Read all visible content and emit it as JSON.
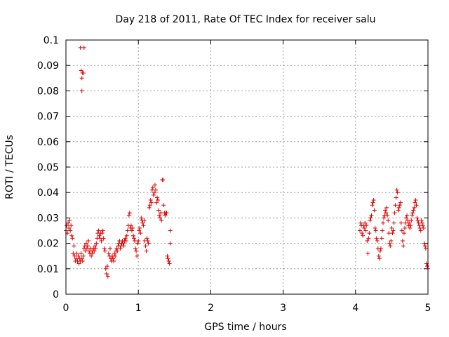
{
  "chart_data": {
    "type": "scatter",
    "title": "Day 218 of 2011, Rate Of TEC Index for receiver salu",
    "xlabel": "GPS time / hours",
    "ylabel": "ROTI / TECUs",
    "xlim": [
      0,
      5
    ],
    "ylim": [
      0,
      0.1
    ],
    "x_ticks": [
      "0",
      "1",
      "2",
      "3",
      "4",
      "5"
    ],
    "y_ticks": [
      "0",
      "0.01",
      "0.02",
      "0.03",
      "0.04",
      "0.05",
      "0.06",
      "0.07",
      "0.08",
      "0.09",
      "0.1"
    ],
    "grid": true,
    "marker": "plus",
    "color": "#e00000",
    "series": [
      {
        "name": "ROTI",
        "points": [
          [
            0.0,
            0.025
          ],
          [
            0.01,
            0.027
          ],
          [
            0.02,
            0.024
          ],
          [
            0.03,
            0.028
          ],
          [
            0.04,
            0.026
          ],
          [
            0.05,
            0.029
          ],
          [
            0.06,
            0.025
          ],
          [
            0.07,
            0.027
          ],
          [
            0.08,
            0.023
          ],
          [
            0.09,
            0.022
          ],
          [
            0.1,
            0.016
          ],
          [
            0.11,
            0.019
          ],
          [
            0.12,
            0.015
          ],
          [
            0.13,
            0.013
          ],
          [
            0.14,
            0.014
          ],
          [
            0.15,
            0.016
          ],
          [
            0.16,
            0.013
          ],
          [
            0.17,
            0.015
          ],
          [
            0.18,
            0.012
          ],
          [
            0.19,
            0.014
          ],
          [
            0.2,
            0.013
          ],
          [
            0.21,
            0.016
          ],
          [
            0.22,
            0.014
          ],
          [
            0.23,
            0.013
          ],
          [
            0.24,
            0.015
          ],
          [
            0.25,
            0.018
          ],
          [
            0.26,
            0.019
          ],
          [
            0.27,
            0.017
          ],
          [
            0.28,
            0.02
          ],
          [
            0.29,
            0.018
          ],
          [
            0.3,
            0.019
          ],
          [
            0.31,
            0.021
          ],
          [
            0.32,
            0.017
          ],
          [
            0.33,
            0.016
          ],
          [
            0.34,
            0.018
          ],
          [
            0.35,
            0.015
          ],
          [
            0.36,
            0.017
          ],
          [
            0.37,
            0.016
          ],
          [
            0.38,
            0.018
          ],
          [
            0.39,
            0.017
          ],
          [
            0.4,
            0.019
          ],
          [
            0.41,
            0.018
          ],
          [
            0.42,
            0.02
          ],
          [
            0.43,
            0.022
          ],
          [
            0.44,
            0.024
          ],
          [
            0.45,
            0.025
          ],
          [
            0.46,
            0.023
          ],
          [
            0.47,
            0.022
          ],
          [
            0.48,
            0.024
          ],
          [
            0.49,
            0.021
          ],
          [
            0.5,
            0.024
          ],
          [
            0.51,
            0.025
          ],
          [
            0.52,
            0.022
          ],
          [
            0.53,
            0.018
          ],
          [
            0.54,
            0.017
          ],
          [
            0.55,
            0.01
          ],
          [
            0.56,
            0.008
          ],
          [
            0.57,
            0.011
          ],
          [
            0.58,
            0.007
          ],
          [
            0.59,
            0.016
          ],
          [
            0.6,
            0.015
          ],
          [
            0.61,
            0.018
          ],
          [
            0.62,
            0.014
          ],
          [
            0.63,
            0.013
          ],
          [
            0.64,
            0.015
          ],
          [
            0.65,
            0.014
          ],
          [
            0.66,
            0.013
          ],
          [
            0.67,
            0.016
          ],
          [
            0.68,
            0.015
          ],
          [
            0.69,
            0.017
          ],
          [
            0.7,
            0.018
          ],
          [
            0.71,
            0.017
          ],
          [
            0.72,
            0.019
          ],
          [
            0.73,
            0.02
          ],
          [
            0.74,
            0.021
          ],
          [
            0.75,
            0.018
          ],
          [
            0.76,
            0.019
          ],
          [
            0.77,
            0.02
          ],
          [
            0.78,
            0.021
          ],
          [
            0.79,
            0.02
          ],
          [
            0.8,
            0.019
          ],
          [
            0.81,
            0.021
          ],
          [
            0.82,
            0.022
          ],
          [
            0.83,
            0.021
          ],
          [
            0.84,
            0.023
          ],
          [
            0.85,
            0.025
          ],
          [
            0.86,
            0.027
          ],
          [
            0.87,
            0.031
          ],
          [
            0.88,
            0.032
          ],
          [
            0.89,
            0.026
          ],
          [
            0.9,
            0.027
          ],
          [
            0.91,
            0.025
          ],
          [
            0.92,
            0.026
          ],
          [
            0.93,
            0.023
          ],
          [
            0.94,
            0.022
          ],
          [
            0.95,
            0.021
          ],
          [
            0.96,
            0.018
          ],
          [
            0.97,
            0.017
          ],
          [
            0.98,
            0.015
          ],
          [
            0.99,
            0.02
          ],
          [
            1.0,
            0.021
          ],
          [
            1.01,
            0.025
          ],
          [
            1.02,
            0.026
          ],
          [
            1.03,
            0.024
          ],
          [
            1.04,
            0.03
          ],
          [
            1.05,
            0.029
          ],
          [
            1.06,
            0.028
          ],
          [
            1.07,
            0.027
          ],
          [
            1.08,
            0.029
          ],
          [
            1.09,
            0.021
          ],
          [
            1.1,
            0.019
          ],
          [
            1.11,
            0.017
          ],
          [
            1.12,
            0.022
          ],
          [
            1.13,
            0.021
          ],
          [
            1.14,
            0.02
          ],
          [
            1.15,
            0.034
          ],
          [
            1.16,
            0.035
          ],
          [
            1.17,
            0.037
          ],
          [
            1.18,
            0.036
          ],
          [
            1.19,
            0.041
          ],
          [
            1.2,
            0.042
          ],
          [
            1.21,
            0.039
          ],
          [
            1.22,
            0.04
          ],
          [
            1.23,
            0.043
          ],
          [
            1.24,
            0.041
          ],
          [
            1.25,
            0.036
          ],
          [
            1.26,
            0.038
          ],
          [
            1.27,
            0.037
          ],
          [
            1.28,
            0.033
          ],
          [
            1.29,
            0.031
          ],
          [
            1.3,
            0.03
          ],
          [
            1.31,
            0.032
          ],
          [
            1.32,
            0.029
          ],
          [
            1.33,
            0.045
          ],
          [
            1.34,
            0.045
          ],
          [
            1.35,
            0.035
          ],
          [
            1.36,
            0.032
          ],
          [
            1.37,
            0.031
          ],
          [
            1.38,
            0.032
          ],
          [
            1.39,
            0.032
          ],
          [
            1.4,
            0.015
          ],
          [
            1.41,
            0.014
          ],
          [
            1.42,
            0.013
          ],
          [
            1.43,
            0.012
          ],
          [
            1.44,
            0.025
          ],
          [
            1.44,
            0.02
          ],
          [
            0.2,
            0.097
          ],
          [
            0.25,
            0.097
          ],
          [
            0.21,
            0.088
          ],
          [
            0.23,
            0.087
          ],
          [
            0.24,
            0.087
          ],
          [
            0.22,
            0.085
          ],
          [
            0.22,
            0.08
          ],
          [
            4.06,
            0.025
          ],
          [
            4.07,
            0.028
          ],
          [
            4.08,
            0.027
          ],
          [
            4.09,
            0.024
          ],
          [
            4.1,
            0.023
          ],
          [
            4.11,
            0.027
          ],
          [
            4.12,
            0.026
          ],
          [
            4.13,
            0.028
          ],
          [
            4.14,
            0.025
          ],
          [
            4.15,
            0.027
          ],
          [
            4.16,
            0.021
          ],
          [
            4.17,
            0.016
          ],
          [
            4.18,
            0.022
          ],
          [
            4.19,
            0.024
          ],
          [
            4.2,
            0.029
          ],
          [
            4.21,
            0.03
          ],
          [
            4.22,
            0.031
          ],
          [
            4.23,
            0.035
          ],
          [
            4.24,
            0.036
          ],
          [
            4.25,
            0.037
          ],
          [
            4.26,
            0.033
          ],
          [
            4.27,
            0.026
          ],
          [
            4.28,
            0.025
          ],
          [
            4.29,
            0.022
          ],
          [
            4.3,
            0.021
          ],
          [
            4.31,
            0.018
          ],
          [
            4.32,
            0.015
          ],
          [
            4.33,
            0.014
          ],
          [
            4.34,
            0.017
          ],
          [
            4.35,
            0.018
          ],
          [
            4.36,
            0.022
          ],
          [
            4.37,
            0.025
          ],
          [
            4.38,
            0.028
          ],
          [
            4.39,
            0.03
          ],
          [
            4.4,
            0.031
          ],
          [
            4.41,
            0.033
          ],
          [
            4.42,
            0.032
          ],
          [
            4.43,
            0.034
          ],
          [
            4.44,
            0.031
          ],
          [
            4.45,
            0.029
          ],
          [
            4.46,
            0.024
          ],
          [
            4.47,
            0.02
          ],
          [
            4.48,
            0.019
          ],
          [
            4.49,
            0.021
          ],
          [
            4.5,
            0.026
          ],
          [
            4.51,
            0.024
          ],
          [
            4.52,
            0.025
          ],
          [
            4.53,
            0.028
          ],
          [
            4.54,
            0.032
          ],
          [
            4.55,
            0.035
          ],
          [
            4.56,
            0.038
          ],
          [
            4.57,
            0.041
          ],
          [
            4.58,
            0.04
          ],
          [
            4.59,
            0.033
          ],
          [
            4.6,
            0.034
          ],
          [
            4.61,
            0.035
          ],
          [
            4.62,
            0.036
          ],
          [
            4.63,
            0.028
          ],
          [
            4.64,
            0.025
          ],
          [
            4.65,
            0.021
          ],
          [
            4.66,
            0.019
          ],
          [
            4.67,
            0.024
          ],
          [
            4.68,
            0.026
          ],
          [
            4.69,
            0.028
          ],
          [
            4.7,
            0.03
          ],
          [
            4.71,
            0.031
          ],
          [
            4.72,
            0.029
          ],
          [
            4.73,
            0.027
          ],
          [
            4.74,
            0.028
          ],
          [
            4.75,
            0.026
          ],
          [
            4.76,
            0.027
          ],
          [
            4.77,
            0.029
          ],
          [
            4.78,
            0.031
          ],
          [
            4.79,
            0.032
          ],
          [
            4.8,
            0.033
          ],
          [
            4.81,
            0.034
          ],
          [
            4.82,
            0.036
          ],
          [
            4.83,
            0.037
          ],
          [
            4.84,
            0.035
          ],
          [
            4.85,
            0.03
          ],
          [
            4.86,
            0.029
          ],
          [
            4.87,
            0.028
          ],
          [
            4.88,
            0.027
          ],
          [
            4.89,
            0.026
          ],
          [
            4.9,
            0.025
          ],
          [
            4.91,
            0.029
          ],
          [
            4.92,
            0.028
          ],
          [
            4.93,
            0.027
          ],
          [
            4.94,
            0.026
          ],
          [
            4.95,
            0.02
          ],
          [
            4.96,
            0.019
          ],
          [
            4.97,
            0.018
          ],
          [
            4.98,
            0.012
          ],
          [
            4.99,
            0.011
          ],
          [
            5.0,
            0.01
          ]
        ]
      }
    ]
  }
}
